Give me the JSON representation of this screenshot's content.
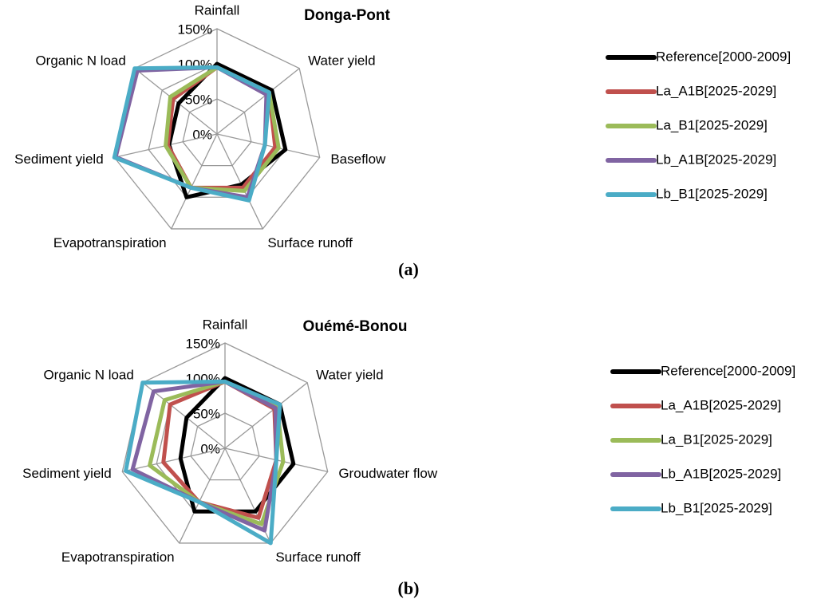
{
  "chart_data": [
    {
      "type": "radar",
      "title": "Donga-Pont",
      "caption": "(a)",
      "categories": [
        "Rainfall",
        "Water yield",
        "Baseflow",
        "Surface runoff",
        "Evapotranspiration",
        "Sediment yield",
        "Organic N load"
      ],
      "series": [
        {
          "name": "Reference[2000-2009]",
          "color": "#000000",
          "values": [
            100,
            100,
            100,
            80,
            100,
            70,
            70
          ]
        },
        {
          "name": "La_A1B[2025-2029]",
          "color": "#c0504d",
          "values": [
            95,
            95,
            85,
            85,
            85,
            72,
            80
          ]
        },
        {
          "name": "La_B1[2025-2029]",
          "color": "#9bbb59",
          "values": [
            95,
            95,
            90,
            90,
            85,
            75,
            85
          ]
        },
        {
          "name": "Lb_A1B[2025-2029]",
          "color": "#8064a2",
          "values": [
            95,
            90,
            70,
            100,
            85,
            148,
            145
          ]
        },
        {
          "name": "Lb_B1[2025-2029]",
          "color": "#4bacc6",
          "values": [
            95,
            95,
            70,
            105,
            85,
            150,
            150
          ]
        }
      ],
      "ylim": [
        0,
        150
      ],
      "yticks": [
        {
          "value": 0,
          "label": "0%"
        },
        {
          "value": 50,
          "label": "50%"
        },
        {
          "value": 100,
          "label": "100%"
        },
        {
          "value": 150,
          "label": "150%"
        }
      ],
      "grid": true,
      "legend": "right"
    },
    {
      "type": "radar",
      "title": "Ouémé-Bonou",
      "caption": "(b)",
      "categories": [
        "Rainfall",
        "Water yield",
        "Groudwater flow",
        "Surface runoff",
        "Evapotranspiration",
        "Sediment yield",
        "Organic N load"
      ],
      "series": [
        {
          "name": "Reference[2000-2009]",
          "color": "#000000",
          "values": [
            100,
            100,
            100,
            100,
            100,
            65,
            70
          ]
        },
        {
          "name": "La_A1B[2025-2029]",
          "color": "#c0504d",
          "values": [
            95,
            90,
            75,
            110,
            85,
            90,
            100
          ]
        },
        {
          "name": "La_B1[2025-2029]",
          "color": "#9bbb59",
          "values": [
            95,
            95,
            85,
            120,
            85,
            110,
            110
          ]
        },
        {
          "name": "Lb_A1B[2025-2029]",
          "color": "#8064a2",
          "values": [
            95,
            92,
            75,
            130,
            85,
            135,
            130
          ]
        },
        {
          "name": "Lb_B1[2025-2029]",
          "color": "#4bacc6",
          "values": [
            95,
            100,
            75,
            150,
            85,
            145,
            150
          ]
        }
      ],
      "ylim": [
        0,
        150
      ],
      "yticks": [
        {
          "value": 0,
          "label": "0%"
        },
        {
          "value": 50,
          "label": "50%"
        },
        {
          "value": 100,
          "label": "100%"
        },
        {
          "value": 150,
          "label": "150%"
        }
      ],
      "grid": true,
      "legend": "right"
    }
  ]
}
